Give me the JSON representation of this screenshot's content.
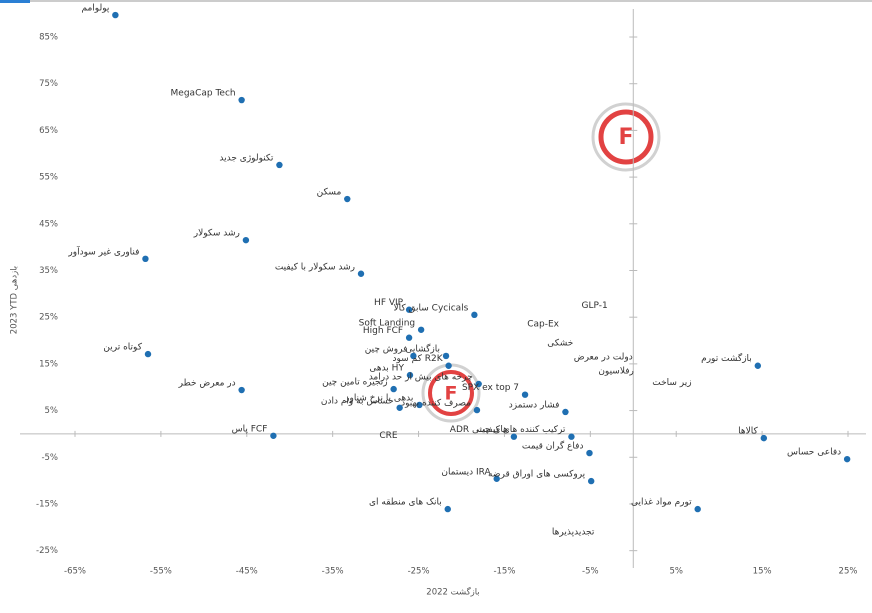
{
  "chart_data": {
    "type": "scatter",
    "x_label": "2022 بازگشت",
    "y_label": "2023 YTD بازدهی",
    "xlim": [
      -65,
      25
    ],
    "ylim": [
      -27,
      91
    ],
    "xticks": [
      {
        "value": -65,
        "label": "-65%"
      },
      {
        "value": -55,
        "label": "-55%"
      },
      {
        "value": -45,
        "label": "-45%"
      },
      {
        "value": -35,
        "label": "-35%"
      },
      {
        "value": -25,
        "label": "-25%"
      },
      {
        "value": -15,
        "label": "-15%"
      },
      {
        "value": -5,
        "label": "-5%"
      },
      {
        "value": 5,
        "label": "5%"
      },
      {
        "value": 15,
        "label": "15%"
      },
      {
        "value": 25,
        "label": "25%"
      }
    ],
    "yticks": [
      {
        "value": 85,
        "label": "85%"
      },
      {
        "value": 75,
        "label": "75%"
      },
      {
        "value": 65,
        "label": "65%"
      },
      {
        "value": 55,
        "label": "55%"
      },
      {
        "value": 45,
        "label": "45%"
      },
      {
        "value": 35,
        "label": "35%"
      },
      {
        "value": 25,
        "label": "25%"
      },
      {
        "value": 15,
        "label": "15%"
      },
      {
        "value": 5,
        "label": "5%"
      },
      {
        "value": -5,
        "label": "-5%"
      },
      {
        "value": -15,
        "label": "-15%"
      },
      {
        "value": -25,
        "label": "-25%"
      }
    ],
    "color": "#1f6fb2",
    "points": [
      {
        "label": "پولوامم",
        "x": -60.3,
        "y": 89.7
      },
      {
        "label": "MegaCap Tech",
        "x": -45.6,
        "y": 71.5
      },
      {
        "label": "تکنولوژی جدید",
        "x": -41.2,
        "y": 57.6
      },
      {
        "label": "مسکن",
        "x": -33.3,
        "y": 50.3
      },
      {
        "label": "رشد سکولار",
        "x": -45.1,
        "y": 41.5
      },
      {
        "label": "فناوری غیر سودآور",
        "x": -56.8,
        "y": 37.5
      },
      {
        "label": "کوتاه ترین",
        "x": -56.5,
        "y": 17.1
      },
      {
        "label": "در معرض خطر",
        "x": -45.6,
        "y": 9.4
      },
      {
        "label": "پاس FCF",
        "x": -41.9,
        "y": -0.4
      },
      {
        "label": "رشد سکولار با کیفیت",
        "x": -31.7,
        "y": 34.3
      },
      {
        "label": "HF VIP",
        "x": -26.1,
        "y": 26.6
      },
      {
        "label": "Soft Landing",
        "x": -24.7,
        "y": 22.3
      },
      {
        "label": "High FCF",
        "x": -26.1,
        "y": 20.6
      },
      {
        "label": "فروش چین",
        "x": -25.6,
        "y": 16.7
      },
      {
        "label": "بدهی HY",
        "x": -26.0,
        "y": 12.6
      },
      {
        "label": "زنجیره تامین چین",
        "x": -27.9,
        "y": 9.6
      },
      {
        "label": "حساس به وام دادن",
        "x": -27.2,
        "y": 5.6
      },
      {
        "label": "بدهی با نرخ شناور",
        "x": -24.9,
        "y": 6.2
      },
      {
        "label": "بازگشایی",
        "x": -21.8,
        "y": 16.7
      },
      {
        "label": "کم سود R2K",
        "x": -21.5,
        "y": 14.6
      },
      {
        "label": "سابق کالا Cycicals",
        "x": -18.5,
        "y": 25.5
      },
      {
        "label": "چرخه های بیش از حد درامد",
        "x": -18.0,
        "y": 10.7
      },
      {
        "label": "مصرف کننده بهبود",
        "x": -18.2,
        "y": 5.1
      },
      {
        "label": "ADR های چینی",
        "x": -13.9,
        "y": -0.6
      },
      {
        "label": "دیستمان IRA",
        "x": -15.9,
        "y": -9.6
      },
      {
        "label": "بانک های منطقه ای",
        "x": -21.6,
        "y": -16.1
      },
      {
        "label": "SPX ex top 7",
        "x": -12.6,
        "y": 8.4
      },
      {
        "label": "فشار دستمزد",
        "x": -7.9,
        "y": 4.7
      },
      {
        "label": "ترکیب کننده های کیفیت",
        "x": -7.2,
        "y": -0.6
      },
      {
        "label": "دفاع گران قیمت",
        "x": -5.1,
        "y": -4.1
      },
      {
        "label": "پروکسی های اوراق قرضه",
        "x": -4.9,
        "y": -10.1
      },
      {
        "label": "تورم مواد غذایی",
        "x": 7.5,
        "y": -16.1
      },
      {
        "label": "بازگشت تورم",
        "x": 14.5,
        "y": 14.6
      },
      {
        "label": "کالاها",
        "x": 15.2,
        "y": -0.9
      },
      {
        "label": "دفاعی حساس",
        "x": 24.9,
        "y": -5.4
      }
    ],
    "annotations": [
      {
        "text": "Cap-Ex",
        "x": -10.5,
        "y": 23.5
      },
      {
        "text": "GLP-1",
        "x": -4.5,
        "y": 27.5
      },
      {
        "text": "خشکی",
        "x": -8.5,
        "y": 19.5
      },
      {
        "text": "دولت در معرض",
        "x": -3.5,
        "y": 16.5
      },
      {
        "text": "رفلاسیون",
        "x": -2.0,
        "y": 13.5
      },
      {
        "text": "زیر ساخت",
        "x": 4.5,
        "y": 11.0
      },
      {
        "text": "تجدیدپذیرها",
        "x": -7.0,
        "y": -21.0
      },
      {
        "text": "CRE",
        "x": -28.5,
        "y": -0.3
      }
    ]
  }
}
